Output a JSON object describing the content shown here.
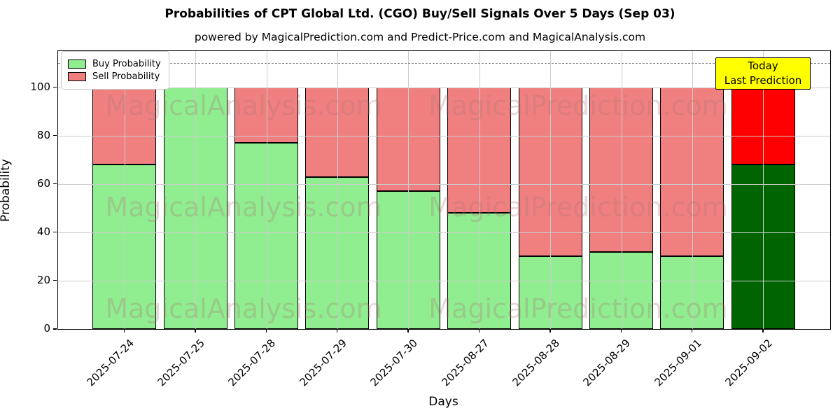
{
  "header": {
    "title": "Probabilities of CPT Global Ltd. (CGO) Buy/Sell Signals Over 5 Days (Sep 03)",
    "subtitle": "powered by MagicalPrediction.com and Predict-Price.com and MagicalAnalysis.com"
  },
  "axes": {
    "xlabel": "Days",
    "ylabel": "Probability",
    "yticks": [
      0,
      20,
      40,
      60,
      80,
      100
    ]
  },
  "legend": {
    "items": [
      {
        "label": "Buy Probability",
        "color": "#90EE90"
      },
      {
        "label": "Sell Probability",
        "color": "#F08080"
      }
    ]
  },
  "annotation_box": {
    "lines": [
      "Today",
      "Last Prediction"
    ],
    "bg_color": "#ffff00"
  },
  "watermarks": {
    "left_text": "MagicalAnalysis.com",
    "right_text": "MagicalPrediction.com"
  },
  "chart_data": {
    "type": "bar",
    "stacked": true,
    "title": "Probabilities of CPT Global Ltd. (CGO) Buy/Sell Signals Over 5 Days (Sep 03)",
    "xlabel": "Days",
    "ylabel": "Probability",
    "ylim": [
      0,
      115
    ],
    "grid": true,
    "legend_position": "upper left",
    "dashed_line_y": 110,
    "today_index": 9,
    "categories": [
      "2025-07-24",
      "2025-07-25",
      "2025-07-28",
      "2025-07-29",
      "2025-07-30",
      "2025-08-27",
      "2025-08-28",
      "2025-08-29",
      "2025-09-01",
      "2025-09-02"
    ],
    "series": [
      {
        "name": "Buy Probability",
        "values": [
          68,
          100,
          77,
          63,
          57,
          48,
          30,
          32,
          30,
          68
        ]
      },
      {
        "name": "Sell Probability",
        "values": [
          32,
          0,
          23,
          37,
          43,
          52,
          70,
          68,
          70,
          32
        ]
      }
    ],
    "colors": {
      "buy": "#90EE90",
      "sell": "#F08080",
      "buy_today": "#006400",
      "sell_today": "#FF0000",
      "grid": "#cccccc",
      "dashed_line": "#7f7f7f",
      "annotation_bg": "#ffff00"
    }
  }
}
